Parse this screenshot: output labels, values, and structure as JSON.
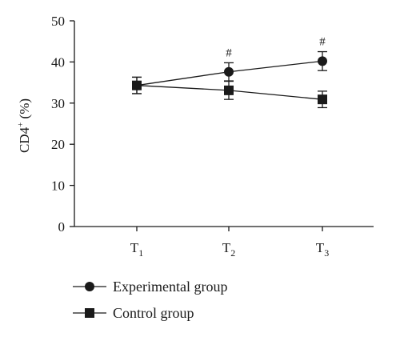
{
  "chart_data": {
    "type": "line",
    "title": "",
    "xlabel": "",
    "ylabel": "CD4",
    "ylabel_sup": "+",
    "ylabel_unit": " (%)",
    "ylim": [
      0,
      50
    ],
    "yticks": [
      "0",
      "10",
      "20",
      "30",
      "40",
      "50"
    ],
    "categories": [
      {
        "base": "T",
        "sub": "1"
      },
      {
        "base": "T",
        "sub": "2"
      },
      {
        "base": "T",
        "sub": "3"
      }
    ],
    "series": [
      {
        "name": "Experimental group",
        "marker": "circle",
        "values": [
          34.3,
          37.6,
          40.2
        ],
        "errors": [
          2.0,
          2.2,
          2.3
        ],
        "annotations": [
          "",
          "#",
          "#"
        ]
      },
      {
        "name": "Control group",
        "marker": "square",
        "values": [
          34.3,
          33.1,
          30.9
        ],
        "errors": [
          2.0,
          2.2,
          2.0
        ],
        "annotations": [
          "",
          "",
          ""
        ]
      }
    ],
    "legend_position": "bottom-left",
    "grid": false
  }
}
